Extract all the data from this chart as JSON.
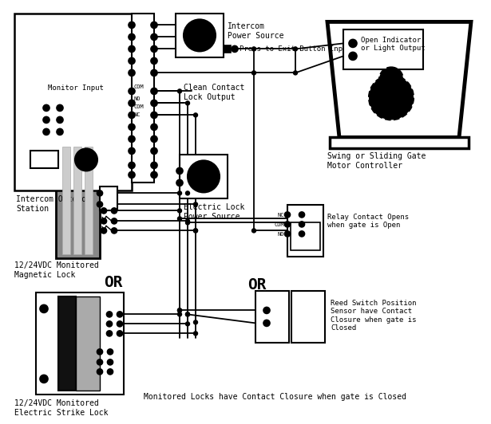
{
  "bg": "#ffffff",
  "lc": "#000000",
  "labels": {
    "monitor_input": "Monitor Input",
    "intercom_outdoor": "Intercom Outdoor\nStation",
    "intercom_ps": "Intercom\nPower Source",
    "press_exit": "Press to Exit Button Input",
    "clean_contact": "Clean Contact\nLock Output",
    "electric_lock_ps": "Electric Lock\nPower Source",
    "relay_contact": "Relay Contact Opens\nwhen gate is Open",
    "swing_gate": "Swing or Sliding Gate\nMotor Controller",
    "open_indicator": "Open Indicator\nor Light Output",
    "magnetic_lock": "12/24VDC Monitored\nMagnetic Lock",
    "electric_strike": "12/24VDC Monitored\nElectric Strike Lock",
    "reed_switch": "Reed Switch Position\nSensor have Contact\nClosure when gate is\nClosed",
    "or1": "OR",
    "nc_lbl": "NC",
    "com_lbl": "COM",
    "no_lbl": "NO",
    "bottom_label": "Monitored Locks have Contact Closure when gate is Closed"
  }
}
